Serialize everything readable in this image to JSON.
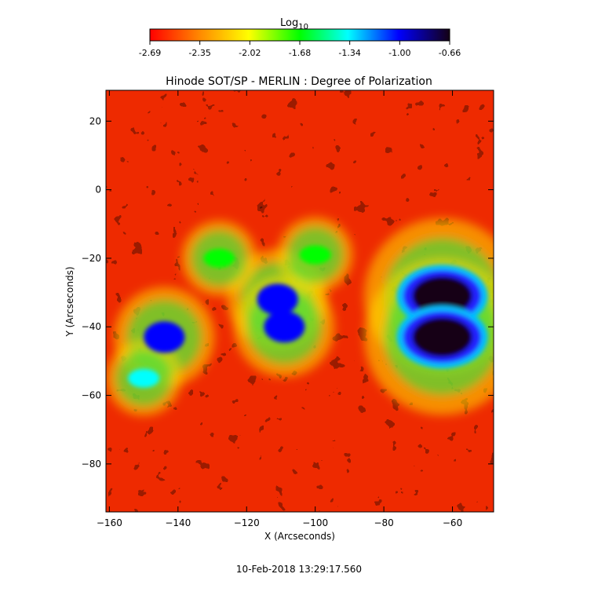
{
  "chart_data": {
    "type": "heatmap",
    "title": "Hinode SOT/SP - MERLIN : Degree of Polarization",
    "xlabel": "X (Arcseconds)",
    "ylabel": "Y (Arcseconds)",
    "xlim": [
      -161,
      -48
    ],
    "ylim": [
      -94,
      29
    ],
    "x_ticks": [
      -160,
      -140,
      -120,
      -100,
      -80,
      -60
    ],
    "y_ticks": [
      20,
      0,
      -20,
      -40,
      -60,
      -80
    ],
    "colorbar": {
      "label_main": "Log",
      "label_sub": "10",
      "range": [
        -2.69,
        -0.66
      ],
      "ticks": [
        "-2.69",
        "-2.35",
        "-2.02",
        "-1.68",
        "-1.34",
        "-1.00",
        "-0.66"
      ],
      "colors": [
        "#ff0000",
        "#ff8c00",
        "#ffff00",
        "#00ff00",
        "#00ffff",
        "#0000ff",
        "#140014"
      ],
      "colormap": "rainbow"
    },
    "timestamp": "10-Feb-2018 13:29:17.560",
    "features": [
      {
        "x": -63,
        "y": -31,
        "value": -0.72
      },
      {
        "x": -63,
        "y": -43,
        "value": -0.74
      },
      {
        "x": -111,
        "y": -32,
        "value": -1.05
      },
      {
        "x": -109,
        "y": -40,
        "value": -1.08
      },
      {
        "x": -144,
        "y": -43,
        "value": -1.0
      },
      {
        "x": -100,
        "y": -19,
        "value": -1.6
      },
      {
        "x": -128,
        "y": -20,
        "value": -1.8
      },
      {
        "x": -150,
        "y": -55,
        "value": -1.5
      }
    ]
  }
}
